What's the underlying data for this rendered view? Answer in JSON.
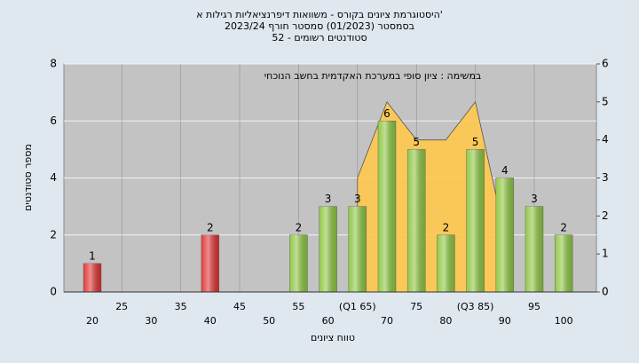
{
  "chart_data": {
    "type": "bar",
    "title": "היסטוגרמת ציונים בקורס - משוואות דיפרנציאליות רגילות א'",
    "subtitle": "בסמסטר  (01/2023)  סמסטר חורף 2023/24",
    "subtitle2": "סטודנטים רשומים - 52",
    "annotation": "במשימה : ציון סופי במערכת האקדמית בחשב הנוכחי",
    "xlabel": "טווח ציונים",
    "ylabel": "מספר סטודנטים",
    "categories": [
      "20",
      "25",
      "30",
      "35",
      "40",
      "45",
      "50",
      "55",
      "60",
      "(Q1 65)",
      "70",
      "75",
      "80",
      "(Q3 85)",
      "90",
      "95",
      "100"
    ],
    "values": [
      1,
      null,
      null,
      null,
      2,
      null,
      null,
      2,
      3,
      3,
      6,
      5,
      2,
      5,
      4,
      3,
      2
    ],
    "colors": [
      "#e03030",
      null,
      null,
      null,
      "#e03030",
      null,
      null,
      "#8cc63f",
      "#8cc63f",
      "#8cc63f",
      "#8cc63f",
      "#8cc63f",
      "#8cc63f",
      "#8cc63f",
      "#8cc63f",
      "#8cc63f",
      "#8cc63f"
    ],
    "area": {
      "color": "#ffc94d",
      "axis": "y2",
      "values": [
        null,
        null,
        null,
        null,
        null,
        null,
        null,
        null,
        null,
        3,
        5,
        4,
        4,
        5,
        1.5,
        null,
        null
      ]
    },
    "ylim": [
      0,
      8
    ],
    "yticks": [
      0,
      2,
      4,
      6,
      8
    ],
    "y2lim": [
      0,
      6
    ],
    "y2ticks": [
      0,
      1,
      2,
      3,
      4,
      5,
      6
    ],
    "grid": true
  }
}
